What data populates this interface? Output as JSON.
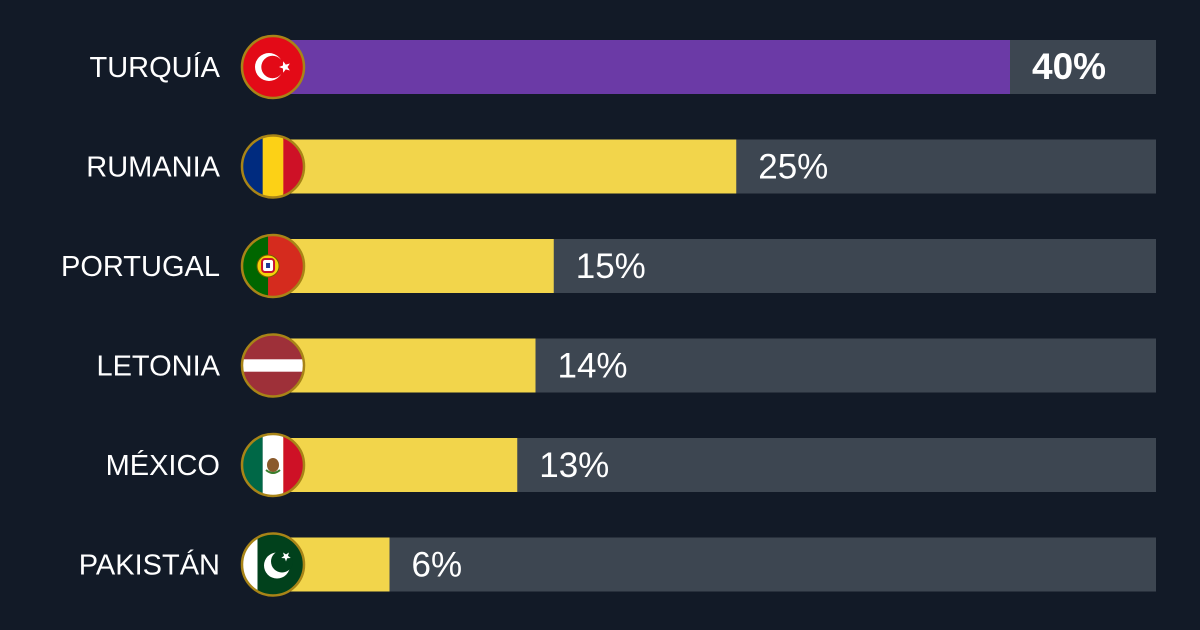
{
  "chart_data": {
    "type": "bar",
    "orientation": "horizontal",
    "categories": [
      "TURQUÍA",
      "RUMANIA",
      "PORTUGAL",
      "LETONIA",
      "MÉXICO",
      "PAKISTÁN"
    ],
    "values": [
      40,
      25,
      15,
      14,
      13,
      6
    ],
    "value_labels": [
      "40%",
      "25%",
      "15%",
      "14%",
      "13%",
      "6%"
    ],
    "flag_icons": [
      "turkey-flag-icon",
      "romania-flag-icon",
      "portugal-flag-icon",
      "latvia-flag-icon",
      "mexico-flag-icon",
      "pakistan-flag-icon"
    ],
    "highlight_index": 0,
    "xlim": [
      0,
      60
    ],
    "grid": false,
    "legend": "none",
    "colors": {
      "background": "#121a27",
      "track": "#3d4651",
      "bar": "#f2d54b",
      "highlight": "#6b3aa6",
      "text": "#ffffff"
    }
  }
}
